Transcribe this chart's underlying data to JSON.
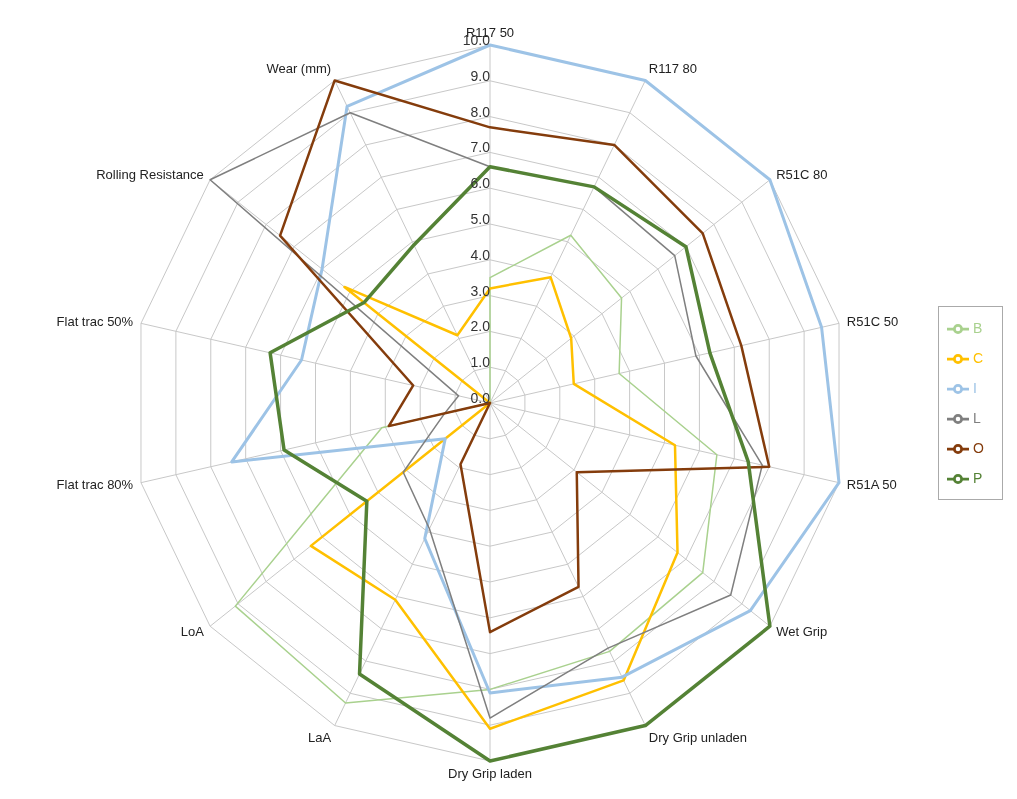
{
  "chart_data": {
    "type": "radar",
    "categories": [
      "R117 50",
      "R117 80",
      "R51C 80",
      "R51C 50",
      "R51A 50",
      "Wet Grip",
      "Dry Grip unladen",
      "Dry Grip laden",
      "LaA",
      "LoA",
      "Flat trac 80%",
      "Flat trac 50%",
      "Rolling Resistance",
      "Wear (mm)"
    ],
    "series": [
      {
        "name": "B",
        "color": "#a9d18e",
        "values": [
          3.5,
          5.2,
          4.7,
          3.7,
          6.5,
          7.6,
          7.7,
          8.0,
          9.3,
          9.1,
          3.1,
          0,
          0,
          0
        ]
      },
      {
        "name": "C",
        "color": "#ffc000",
        "values": [
          3.2,
          3.9,
          2.9,
          2.4,
          5.3,
          6.7,
          8.6,
          9.1,
          6.1,
          6.4,
          0,
          0,
          5.2,
          2.1
        ]
      },
      {
        "name": "I",
        "color": "#9dc3e6",
        "values": [
          10.0,
          10.0,
          10.0,
          9.5,
          10.0,
          9.3,
          8.5,
          8.1,
          4.2,
          1.6,
          7.4,
          5.4,
          6.0,
          9.2
        ]
      },
      {
        "name": "L",
        "color": "#7f7f7f",
        "values": [
          6.6,
          6.7,
          6.6,
          5.9,
          7.8,
          8.6,
          7.6,
          8.8,
          3.9,
          3.1,
          1.3,
          0.9,
          10.0,
          9.0
        ]
      },
      {
        "name": "O",
        "color": "#843c0c",
        "values": [
          7.7,
          8.0,
          7.6,
          7.2,
          8.0,
          3.1,
          5.7,
          6.4,
          1.9,
          0,
          2.9,
          2.2,
          7.5,
          10.0
        ]
      },
      {
        "name": "P",
        "color": "#548235",
        "values": [
          6.6,
          6.7,
          7.0,
          6.3,
          7.4,
          10.0,
          10.0,
          10.0,
          8.4,
          4.4,
          5.9,
          6.3,
          4.5,
          4.9
        ]
      }
    ],
    "ylim": [
      0,
      10
    ],
    "yticks": [
      {
        "value": 0,
        "label": "0.0"
      },
      {
        "value": 1,
        "label": "1.0"
      },
      {
        "value": 2,
        "label": "2.0"
      },
      {
        "value": 3,
        "label": "3.0"
      },
      {
        "value": 4,
        "label": "4.0"
      },
      {
        "value": 5,
        "label": "5.0"
      },
      {
        "value": 6,
        "label": "6.0"
      },
      {
        "value": 7,
        "label": "7.0"
      },
      {
        "value": 8,
        "label": "8.0"
      },
      {
        "value": 9,
        "label": "9.0"
      },
      {
        "value": 10,
        "label": "10.0"
      }
    ],
    "grid": true,
    "legend": "right"
  }
}
